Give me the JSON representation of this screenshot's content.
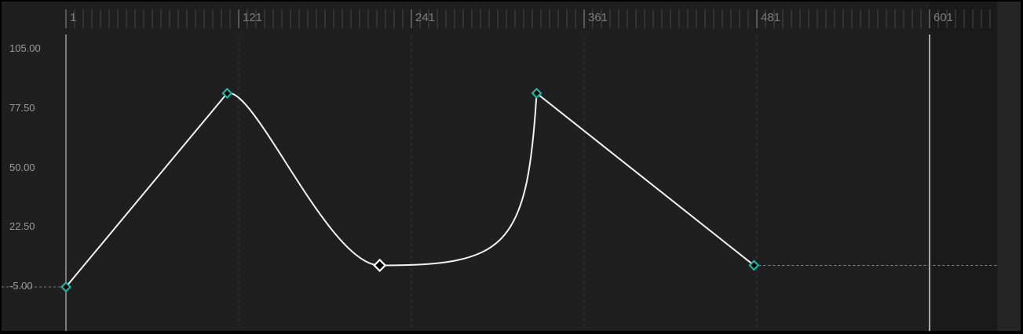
{
  "ruler": {
    "labels": [
      "1",
      "121",
      "241",
      "361",
      "481",
      "601"
    ],
    "frames": [
      1,
      121,
      241,
      361,
      481,
      601
    ]
  },
  "value_axis": {
    "labels": [
      "105.00",
      "77.50",
      "50.00",
      "22.50",
      "-5.00"
    ],
    "values": [
      105,
      77.5,
      50,
      22.5,
      -5
    ]
  },
  "colors": {
    "background": "#1f1f1f",
    "curve": "#f2f2f2",
    "keyframe": "#1db3a0",
    "selected_keyframe": "#ffffff",
    "out_of_range": "#1a1a1a"
  },
  "chart_data": {
    "type": "line",
    "x_range": [
      1,
      601
    ],
    "y_range": [
      -5,
      105
    ],
    "keyframes": [
      {
        "frame": 1,
        "value": -5,
        "interpolation": "linear",
        "selected": false
      },
      {
        "frame": 113,
        "value": 84.7,
        "interpolation": "bezier",
        "selected": false
      },
      {
        "frame": 219,
        "value": 5,
        "interpolation": "bezier",
        "selected": true
      },
      {
        "frame": 328,
        "value": 84.7,
        "interpolation": "linear",
        "selected": false
      },
      {
        "frame": 479,
        "value": 5,
        "interpolation": "constant",
        "selected": false
      }
    ],
    "extrapolation_after": "constant"
  }
}
